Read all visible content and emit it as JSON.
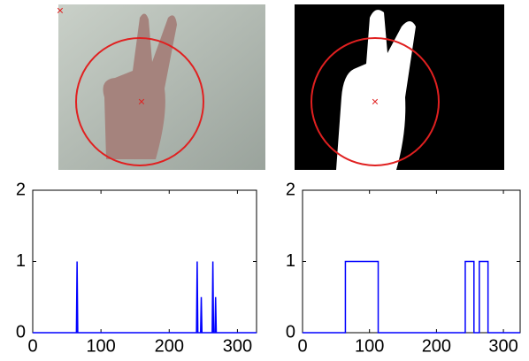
{
  "chart_data": [
    {
      "type": "line",
      "color": "#0000ff",
      "x": [
        0,
        64,
        65,
        66,
        240,
        241,
        242,
        246,
        247,
        248,
        263,
        264,
        265,
        267,
        268,
        269,
        328
      ],
      "values": [
        0,
        0,
        1,
        0,
        0,
        1,
        0,
        0,
        0.5,
        0,
        0,
        1,
        0,
        0,
        0.5,
        0,
        0
      ],
      "xlim": [
        0,
        328
      ],
      "ylim": [
        0,
        2
      ],
      "xticks": [
        0,
        100,
        200,
        300
      ],
      "yticks": [
        0,
        1,
        2
      ]
    },
    {
      "type": "line",
      "color": "#0000ff",
      "x": [
        0,
        64,
        64,
        113,
        113,
        243,
        243,
        256,
        256,
        264,
        264,
        277,
        277,
        325
      ],
      "values": [
        0,
        0,
        1,
        1,
        0,
        0,
        1,
        1,
        0,
        0,
        1,
        1,
        0,
        0
      ],
      "xlim": [
        0,
        325
      ],
      "ylim": [
        0,
        2
      ],
      "xticks": [
        0,
        100,
        200,
        300
      ],
      "yticks": [
        0,
        1,
        2
      ]
    }
  ]
}
